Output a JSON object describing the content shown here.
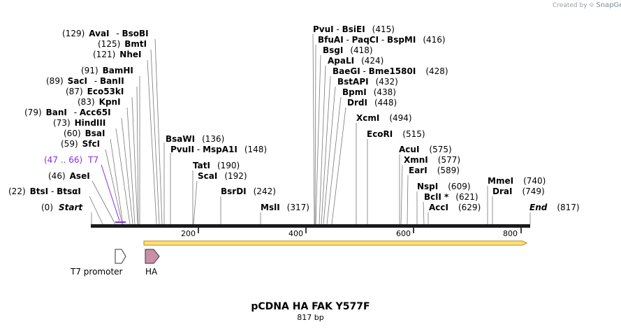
{
  "credit": {
    "prefix": "Created by",
    "brand": "SnapGene"
  },
  "title": "pCDNA HA FAK Y577F",
  "subtitle": "817 bp",
  "colors": {
    "primer": "#8a2be2",
    "orf_fill": "#ffe07a",
    "orf_border": "#b88a1a",
    "ha_fill": "#c98fa6"
  },
  "ends": {
    "start_label": "Start",
    "start_pos": "(0)",
    "end_label": "End",
    "end_pos": "(817)"
  },
  "ruler_ticks": [
    "200",
    "400",
    "600",
    "800"
  ],
  "primer": {
    "range": "(47 .. 66)",
    "name": "T7"
  },
  "left_sites": [
    {
      "pos": "(129)",
      "name": "AvaI",
      "alt": "BsoBI"
    },
    {
      "pos": "(125)",
      "name": "BmtI",
      "alt": ""
    },
    {
      "pos": "(121)",
      "name": "NheI",
      "alt": ""
    },
    {
      "pos": "(91)",
      "name": "BamHI",
      "alt": ""
    },
    {
      "pos": "(89)",
      "name": "SacI",
      "alt": "BanII"
    },
    {
      "pos": "(87)",
      "name": "Eco53kI",
      "alt": ""
    },
    {
      "pos": "(83)",
      "name": "KpnI",
      "alt": ""
    },
    {
      "pos": "(79)",
      "name": "BanI",
      "alt": "Acc65I"
    },
    {
      "pos": "(73)",
      "name": "HindIII",
      "alt": ""
    },
    {
      "pos": "(60)",
      "name": "BsaI",
      "alt": ""
    },
    {
      "pos": "(59)",
      "name": "SfcI",
      "alt": ""
    },
    {
      "pos": "(46)",
      "name": "AseI",
      "alt": ""
    },
    {
      "pos": "(22)",
      "name": "BtsI",
      "alt": "BtsαI"
    }
  ],
  "mid_sites": [
    {
      "name": "BsaWI",
      "alt": "",
      "pos": "(136)"
    },
    {
      "name": "PvuII",
      "alt": "MspA1I",
      "pos": "(148)"
    },
    {
      "name": "TatI",
      "alt": "",
      "pos": "(190)"
    },
    {
      "name": "ScaI",
      "alt": "",
      "pos": "(192)"
    },
    {
      "name": "BsrDI",
      "alt": "",
      "pos": "(242)"
    },
    {
      "name": "MslI",
      "alt": "",
      "pos": "(317)"
    }
  ],
  "right_sites": [
    {
      "name": "PvuI",
      "alt": "BsiEI",
      "alt2": "",
      "pos": "(415)"
    },
    {
      "name": "BfuAI",
      "alt": "PaqCI",
      "alt2": "BspMI",
      "pos": "(416)"
    },
    {
      "name": "BsgI",
      "alt": "",
      "alt2": "",
      "pos": "(418)"
    },
    {
      "name": "ApaLI",
      "alt": "",
      "alt2": "",
      "pos": "(424)"
    },
    {
      "name": "BaeGI",
      "alt": "Bme1580I",
      "alt2": "",
      "pos": "(428)"
    },
    {
      "name": "BstAPI",
      "alt": "",
      "alt2": "",
      "pos": "(432)"
    },
    {
      "name": "BpmI",
      "alt": "",
      "alt2": "",
      "pos": "(438)"
    },
    {
      "name": "DrdI",
      "alt": "",
      "alt2": "",
      "pos": "(448)"
    },
    {
      "name": "XcmI",
      "alt": "",
      "alt2": "",
      "pos": "(494)"
    },
    {
      "name": "EcoRI",
      "alt": "",
      "alt2": "",
      "pos": "(515)"
    },
    {
      "name": "AcuI",
      "alt": "",
      "alt2": "",
      "pos": "(575)"
    },
    {
      "name": "XmnI",
      "alt": "",
      "alt2": "",
      "pos": "(577)"
    },
    {
      "name": "EarI",
      "alt": "",
      "alt2": "",
      "pos": "(589)"
    },
    {
      "name": "NspI",
      "alt": "",
      "alt2": "",
      "pos": "(609)"
    },
    {
      "name": "BclI *",
      "alt": "",
      "alt2": "",
      "pos": "(621)"
    },
    {
      "name": "AccI",
      "alt": "",
      "alt2": "",
      "pos": "(629)"
    },
    {
      "name": "MmeI",
      "alt": "",
      "alt2": "",
      "pos": "(740)"
    },
    {
      "name": "DraI",
      "alt": "",
      "alt2": "",
      "pos": "(749)"
    }
  ],
  "features": {
    "t7_label": "T7 promoter",
    "ha_label": "HA"
  }
}
